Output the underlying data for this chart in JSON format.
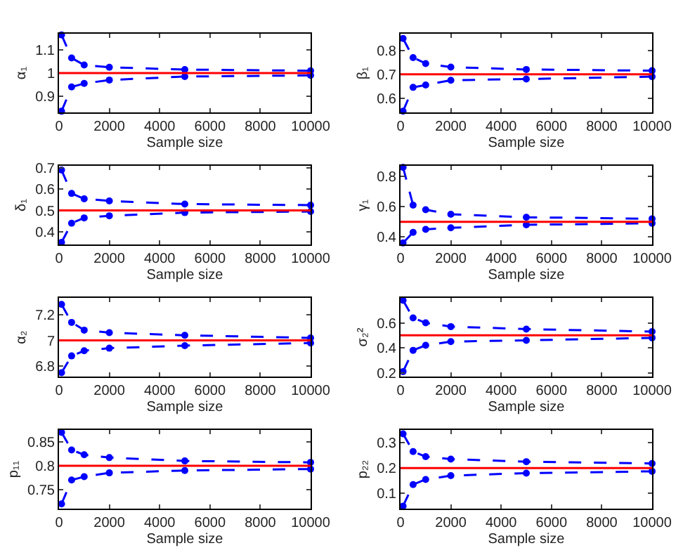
{
  "chart_data": [
    {
      "type": "line",
      "x": [
        100,
        500,
        1000,
        2000,
        5000,
        10000
      ],
      "xlim": [
        0,
        10000
      ],
      "xticks": [
        0,
        2000,
        4000,
        6000,
        8000,
        10000
      ],
      "xlabel": "Sample size",
      "ylabel": "α₁",
      "ylim": [
        0.83,
        1.17
      ],
      "yticks": [
        0.9,
        1,
        1.1
      ],
      "grid": false,
      "marker": "circle",
      "line_style": "dashed",
      "series": [
        {
          "color": "#0000ff",
          "values": [
            1.165,
            1.065,
            1.035,
            1.025,
            1.015,
            1.01
          ]
        },
        {
          "color": "#0000ff",
          "values": [
            0.835,
            0.94,
            0.955,
            0.97,
            0.985,
            0.99
          ]
        }
      ],
      "ref_lines": [
        {
          "axis": "y",
          "value": 1,
          "color": "#ff0000"
        }
      ]
    },
    {
      "type": "line",
      "x": [
        100,
        500,
        1000,
        2000,
        5000,
        10000
      ],
      "xlim": [
        0,
        10000
      ],
      "xticks": [
        0,
        2000,
        4000,
        6000,
        8000,
        10000
      ],
      "xlabel": "Sample size",
      "ylabel": "β₁",
      "ylim": [
        0.54,
        0.87
      ],
      "yticks": [
        0.6,
        0.7,
        0.8
      ],
      "grid": false,
      "marker": "circle",
      "line_style": "dashed",
      "series": [
        {
          "color": "#0000ff",
          "values": [
            0.85,
            0.77,
            0.745,
            0.73,
            0.72,
            0.715
          ]
        },
        {
          "color": "#0000ff",
          "values": [
            0.545,
            0.645,
            0.655,
            0.675,
            0.68,
            0.69
          ]
        }
      ],
      "ref_lines": [
        {
          "axis": "y",
          "value": 0.7,
          "color": "#ff0000"
        }
      ]
    },
    {
      "type": "line",
      "x": [
        100,
        500,
        1000,
        2000,
        5000,
        10000
      ],
      "xlim": [
        0,
        10000
      ],
      "xticks": [
        0,
        2000,
        4000,
        6000,
        8000,
        10000
      ],
      "xlabel": "Sample size",
      "ylabel": "δ₁",
      "ylim": [
        0.34,
        0.71
      ],
      "yticks": [
        0.4,
        0.5,
        0.6,
        0.7
      ],
      "grid": false,
      "marker": "circle",
      "line_style": "dashed",
      "series": [
        {
          "color": "#0000ff",
          "values": [
            0.69,
            0.58,
            0.555,
            0.545,
            0.53,
            0.525
          ]
        },
        {
          "color": "#0000ff",
          "values": [
            0.35,
            0.44,
            0.465,
            0.475,
            0.49,
            0.495
          ]
        }
      ],
      "ref_lines": [
        {
          "axis": "y",
          "value": 0.5,
          "color": "#ff0000"
        }
      ]
    },
    {
      "type": "line",
      "x": [
        100,
        500,
        1000,
        2000,
        5000,
        10000
      ],
      "xlim": [
        0,
        10000
      ],
      "xticks": [
        0,
        2000,
        4000,
        6000,
        8000,
        10000
      ],
      "xlabel": "Sample size",
      "ylabel": "γ₁",
      "ylim": [
        0.35,
        0.87
      ],
      "yticks": [
        0.4,
        0.6,
        0.8
      ],
      "grid": false,
      "marker": "circle",
      "line_style": "dashed",
      "series": [
        {
          "color": "#0000ff",
          "values": [
            0.86,
            0.61,
            0.58,
            0.55,
            0.53,
            0.52
          ]
        },
        {
          "color": "#0000ff",
          "values": [
            0.36,
            0.43,
            0.45,
            0.46,
            0.48,
            0.49
          ]
        }
      ],
      "ref_lines": [
        {
          "axis": "y",
          "value": 0.5,
          "color": "#ff0000"
        }
      ]
    },
    {
      "type": "line",
      "x": [
        100,
        500,
        1000,
        2000,
        5000,
        10000
      ],
      "xlim": [
        0,
        10000
      ],
      "xticks": [
        0,
        2000,
        4000,
        6000,
        8000,
        10000
      ],
      "xlabel": "Sample size",
      "ylabel": "α₂",
      "ylim": [
        6.72,
        7.33
      ],
      "yticks": [
        6.8,
        7,
        7.2
      ],
      "grid": false,
      "marker": "circle",
      "line_style": "dashed",
      "series": [
        {
          "color": "#0000ff",
          "values": [
            7.28,
            7.14,
            7.08,
            7.06,
            7.04,
            7.02
          ]
        },
        {
          "color": "#0000ff",
          "values": [
            6.75,
            6.88,
            6.92,
            6.94,
            6.96,
            6.98
          ]
        }
      ],
      "ref_lines": [
        {
          "axis": "y",
          "value": 7,
          "color": "#ff0000"
        }
      ]
    },
    {
      "type": "line",
      "x": [
        100,
        500,
        1000,
        2000,
        5000,
        10000
      ],
      "xlim": [
        0,
        10000
      ],
      "xticks": [
        0,
        2000,
        4000,
        6000,
        8000,
        10000
      ],
      "xlabel": "Sample size",
      "ylabel": "σ₂²",
      "ylim": [
        0.17,
        0.8
      ],
      "yticks": [
        0.2,
        0.4,
        0.6
      ],
      "grid": false,
      "marker": "circle",
      "line_style": "dashed",
      "series": [
        {
          "color": "#0000ff",
          "values": [
            0.78,
            0.64,
            0.6,
            0.57,
            0.55,
            0.53
          ]
        },
        {
          "color": "#0000ff",
          "values": [
            0.21,
            0.38,
            0.42,
            0.45,
            0.46,
            0.48
          ]
        }
      ],
      "ref_lines": [
        {
          "axis": "y",
          "value": 0.5,
          "color": "#ff0000"
        }
      ]
    },
    {
      "type": "line",
      "x": [
        100,
        500,
        1000,
        2000,
        5000,
        10000
      ],
      "xlim": [
        0,
        10000
      ],
      "xticks": [
        0,
        2000,
        4000,
        6000,
        8000,
        10000
      ],
      "xlabel": "Sample size",
      "ylabel": "p₁₁",
      "ylim": [
        0.71,
        0.875
      ],
      "yticks": [
        0.75,
        0.8,
        0.85
      ],
      "grid": false,
      "marker": "circle",
      "line_style": "dashed",
      "series": [
        {
          "color": "#0000ff",
          "values": [
            0.87,
            0.833,
            0.823,
            0.817,
            0.81,
            0.807
          ]
        },
        {
          "color": "#0000ff",
          "values": [
            0.72,
            0.77,
            0.777,
            0.785,
            0.79,
            0.793
          ]
        }
      ],
      "ref_lines": [
        {
          "axis": "y",
          "value": 0.8,
          "color": "#ff0000"
        }
      ]
    },
    {
      "type": "line",
      "x": [
        100,
        500,
        1000,
        2000,
        5000,
        10000
      ],
      "xlim": [
        0,
        10000
      ],
      "xticks": [
        0,
        2000,
        4000,
        6000,
        8000,
        10000
      ],
      "xlabel": "Sample size",
      "ylabel": "p₂₂",
      "ylim": [
        0.04,
        0.35
      ],
      "yticks": [
        0.1,
        0.2,
        0.3
      ],
      "grid": false,
      "marker": "circle",
      "line_style": "dashed",
      "series": [
        {
          "color": "#0000ff",
          "values": [
            0.335,
            0.265,
            0.245,
            0.235,
            0.225,
            0.218
          ]
        },
        {
          "color": "#0000ff",
          "values": [
            0.05,
            0.135,
            0.155,
            0.17,
            0.18,
            0.187
          ]
        }
      ],
      "ref_lines": [
        {
          "axis": "y",
          "value": 0.2,
          "color": "#ff0000"
        }
      ]
    }
  ]
}
